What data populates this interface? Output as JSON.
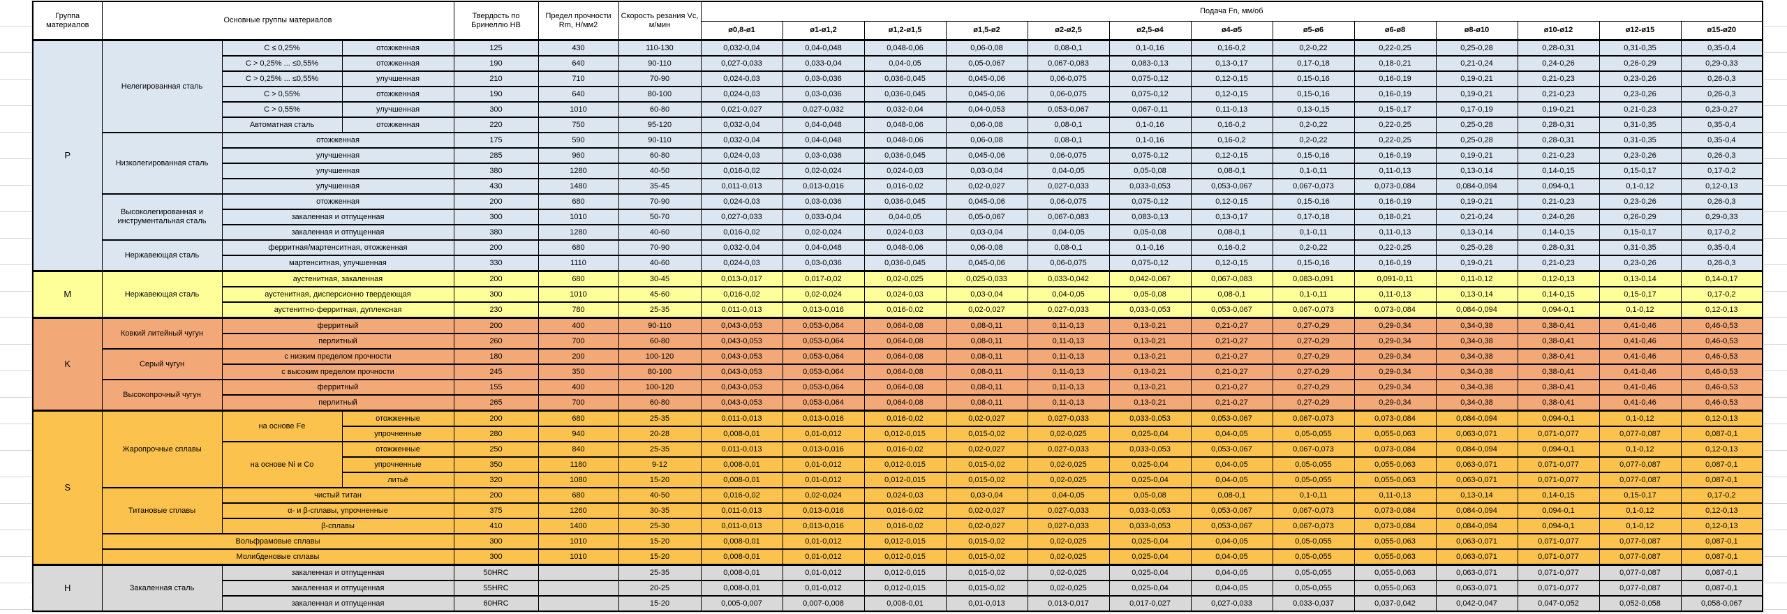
{
  "header": {
    "group": "Группа материалов",
    "main": "Основные группы материалов",
    "hardness": "Твердость по Бринеллю HB",
    "strength": "Предел прочности Rm, Н/мм2",
    "speed": "Скорость резания Vc, м/мин",
    "feed": "Подача Fn, мм/об",
    "diameters": [
      "ø0,8-ø1",
      "ø1-ø1,2",
      "ø1,2-ø1,5",
      "ø1,5-ø2",
      "ø2-ø2,5",
      "ø2,5-ø4",
      "ø4-ø5",
      "ø5-ø6",
      "ø6-ø8",
      "ø8-ø10",
      "ø10-ø12",
      "ø12-ø15",
      "ø15-ø20"
    ]
  },
  "feed_profiles": {
    "A": [
      "0,032-0,04",
      "0,04-0,048",
      "0,048-0,06",
      "0,06-0,08",
      "0,08-0,1",
      "0,1-0,16",
      "0,16-0,2",
      "0,2-0,22",
      "0,22-0,25",
      "0,25-0,28",
      "0,28-0,31",
      "0,31-0,35",
      "0,35-0,4"
    ],
    "B": [
      "0,027-0,033",
      "0,033-0,04",
      "0,04-0,05",
      "0,05-0,067",
      "0,067-0,083",
      "0,083-0,13",
      "0,13-0,17",
      "0,17-0,18",
      "0,18-0,21",
      "0,21-0,24",
      "0,24-0,26",
      "0,26-0,29",
      "0,29-0,33"
    ],
    "C": [
      "0,024-0,03",
      "0,03-0,036",
      "0,036-0,045",
      "0,045-0,06",
      "0,06-0,075",
      "0,075-0,12",
      "0,12-0,15",
      "0,15-0,16",
      "0,16-0,19",
      "0,19-0,21",
      "0,21-0,23",
      "0,23-0,26",
      "0,26-0,3"
    ],
    "D": [
      "0,021-0,027",
      "0,027-0,032",
      "0,032-0,04",
      "0,04-0,053",
      "0,053-0,067",
      "0,067-0,11",
      "0,11-0,13",
      "0,13-0,15",
      "0,15-0,17",
      "0,17-0,19",
      "0,19-0,21",
      "0,21-0,23",
      "0,23-0,27"
    ],
    "E": [
      "0,016-0,02",
      "0,02-0,024",
      "0,024-0,03",
      "0,03-0,04",
      "0,04-0,05",
      "0,05-0,08",
      "0,08-0,1",
      "0,1-0,11",
      "0,11-0,13",
      "0,13-0,14",
      "0,14-0,15",
      "0,15-0,17",
      "0,17-0,2"
    ],
    "F": [
      "0,011-0,013",
      "0,013-0,016",
      "0,016-0,02",
      "0,02-0,027",
      "0,027-0,033",
      "0,033-0,053",
      "0,053-0,067",
      "0,067-0,073",
      "0,073-0,084",
      "0,084-0,094",
      "0,094-0,1",
      "0,1-0,12",
      "0,12-0,13"
    ],
    "G": [
      "0,013-0,017",
      "0,017-0,02",
      "0,02-0,025",
      "0,025-0,033",
      "0,033-0,042",
      "0,042-0,067",
      "0,067-0,083",
      "0,083-0,091",
      "0,091-0,11",
      "0,11-0,12",
      "0,12-0,13",
      "0,13-0,14",
      "0,14-0,17"
    ],
    "H": [
      "0,043-0,053",
      "0,053-0,064",
      "0,064-0,08",
      "0,08-0,11",
      "0,11-0,13",
      "0,13-0,21",
      "0,21-0,27",
      "0,27-0,29",
      "0,29-0,34",
      "0,34-0,38",
      "0,38-0,41",
      "0,41-0,46",
      "0,46-0,53"
    ],
    "I": [
      "0,008-0,01",
      "0,01-0,012",
      "0,012-0,015",
      "0,015-0,02",
      "0,02-0,025",
      "0,025-0,04",
      "0,04-0,05",
      "0,05-0,055",
      "0,055-0,063",
      "0,063-0,071",
      "0,071-0,077",
      "0,077-0,087",
      "0,087-0,1"
    ],
    "J": [
      "0,005-0,007",
      "0,007-0,008",
      "0,008-0,01",
      "0,01-0,013",
      "0,013-0,017",
      "0,017-0,027",
      "0,027-0,033",
      "0,033-0,037",
      "0,037-0,042",
      "0,042-0,047",
      "0,047-0,052",
      "0,052-0,058",
      "0,058-0,067"
    ]
  },
  "groups": [
    {
      "letter": "P",
      "color": "#DCE6F1",
      "rows": [
        {
          "family": "Нелегированная сталь",
          "family_span": 6,
          "sub": "C ≤ 0,25%",
          "state": "отожженная",
          "hb": "125",
          "rm": "430",
          "vc": "110-130",
          "feed": "A"
        },
        {
          "sub": "C > 0,25% ... ≤0,55%",
          "state": "отожженная",
          "hb": "190",
          "rm": "640",
          "vc": "90-110",
          "feed": "B"
        },
        {
          "sub": "C > 0,25% ... ≤0,55%",
          "state": "улучшенная",
          "hb": "210",
          "rm": "710",
          "vc": "70-90",
          "feed": "C"
        },
        {
          "sub": "C > 0,55%",
          "state": "отожженная",
          "hb": "190",
          "rm": "640",
          "vc": "80-100",
          "feed": "C"
        },
        {
          "sub": "C > 0,55%",
          "state": "улучшенная",
          "hb": "300",
          "rm": "1010",
          "vc": "60-80",
          "feed": "D"
        },
        {
          "sub": "Автоматная сталь",
          "state": "отожженная",
          "hb": "220",
          "rm": "750",
          "vc": "95-120",
          "feed": "A"
        },
        {
          "family": "Низколегированная сталь",
          "family_span": 4,
          "merged": "отожженная",
          "hb": "175",
          "rm": "590",
          "vc": "90-110",
          "feed": "A"
        },
        {
          "merged": "улучшенная",
          "hb": "285",
          "rm": "960",
          "vc": "60-80",
          "feed": "C"
        },
        {
          "merged": "улучшенная",
          "hb": "380",
          "rm": "1280",
          "vc": "40-50",
          "feed": "E"
        },
        {
          "merged": "улучшенная",
          "hb": "430",
          "rm": "1480",
          "vc": "35-45",
          "feed": "F"
        },
        {
          "family": "Высоколегированная и инструментальная сталь",
          "family_span": 3,
          "merged": "отожженная",
          "hb": "200",
          "rm": "680",
          "vc": "70-90",
          "feed": "C"
        },
        {
          "merged": "закаленная и отпущенная",
          "hb": "300",
          "rm": "1010",
          "vc": "50-70",
          "feed": "B"
        },
        {
          "merged": "закаленная и отпущенная",
          "hb": "380",
          "rm": "1280",
          "vc": "40-60",
          "feed": "E"
        },
        {
          "family": "Нержавеющая сталь",
          "family_span": 2,
          "merged": "ферритная/мартенситная, отожженная",
          "hb": "200",
          "rm": "680",
          "vc": "70-90",
          "feed": "A"
        },
        {
          "merged": "мартенситная, улучшенная",
          "hb": "330",
          "rm": "1110",
          "vc": "40-60",
          "feed": "C"
        }
      ]
    },
    {
      "letter": "M",
      "color": "#FFFF9A",
      "rows": [
        {
          "family": "Нержавеющая сталь",
          "family_span": 3,
          "merged": "аустенитная, закаленная",
          "hb": "200",
          "rm": "680",
          "vc": "30-45",
          "feed": "G"
        },
        {
          "merged": "аустенитная, дисперсионно твердеющая",
          "hb": "300",
          "rm": "1010",
          "vc": "45-60",
          "feed": "E"
        },
        {
          "merged": "аустенитно-ферритная, дуплексная",
          "hb": "230",
          "rm": "780",
          "vc": "25-35",
          "feed": "F"
        }
      ]
    },
    {
      "letter": "K",
      "color": "#F2A877",
      "rows": [
        {
          "family": "Ковкий литейный чугун",
          "family_span": 2,
          "merged": "ферритный",
          "hb": "200",
          "rm": "400",
          "vc": "90-110",
          "feed": "H"
        },
        {
          "merged": "перлитный",
          "hb": "260",
          "rm": "700",
          "vc": "60-80",
          "feed": "H"
        },
        {
          "family": "Серый чугун",
          "family_span": 2,
          "merged": "с низким пределом прочности",
          "hb": "180",
          "rm": "200",
          "vc": "100-120",
          "feed": "H"
        },
        {
          "merged": "с высоким пределом прочности",
          "hb": "245",
          "rm": "350",
          "vc": "80-100",
          "feed": "H"
        },
        {
          "family": "Высокопрочный чугун",
          "family_span": 2,
          "merged": "ферритный",
          "hb": "155",
          "rm": "400",
          "vc": "100-120",
          "feed": "H"
        },
        {
          "merged": "перлитный",
          "hb": "265",
          "rm": "700",
          "vc": "60-80",
          "feed": "H"
        }
      ]
    },
    {
      "letter": "S",
      "color": "#FBC34D",
      "rows": [
        {
          "family": "Жаропрочные сплавы",
          "family_span": 5,
          "sub": "на основе Fe",
          "sub_span": 2,
          "state": "отожженные",
          "hb": "200",
          "rm": "680",
          "vc": "25-35",
          "feed": "F"
        },
        {
          "state": "упрочненные",
          "hb": "280",
          "rm": "940",
          "vc": "20-28",
          "feed": "I"
        },
        {
          "sub": "на основе Ni и Co",
          "sub_span": 3,
          "state": "отожженные",
          "hb": "250",
          "rm": "840",
          "vc": "25-35",
          "feed": "F"
        },
        {
          "state": "упрочненные",
          "hb": "350",
          "rm": "1180",
          "vc": "9-12",
          "feed": "I"
        },
        {
          "state": "литьё",
          "hb": "320",
          "rm": "1080",
          "vc": "15-20",
          "feed": "I"
        },
        {
          "family": "Титановые сплавы",
          "family_span": 3,
          "merged": "чистый титан",
          "hb": "200",
          "rm": "680",
          "vc": "40-50",
          "feed": "E"
        },
        {
          "merged": "α- и β-сплавы, упрочненные",
          "hb": "375",
          "rm": "1260",
          "vc": "30-35",
          "feed": "F"
        },
        {
          "merged": "β-сплавы",
          "hb": "410",
          "rm": "1400",
          "vc": "25-30",
          "feed": "F"
        },
        {
          "full": "Вольфрамовые сплавы",
          "hb": "300",
          "rm": "1010",
          "vc": "15-20",
          "feed": "I"
        },
        {
          "full": "Молибденовые сплавы",
          "hb": "300",
          "rm": "1010",
          "vc": "15-20",
          "feed": "I"
        }
      ]
    },
    {
      "letter": "H",
      "color": "#D9D9D9",
      "rows": [
        {
          "family": "Закаленная сталь",
          "family_span": 3,
          "merged": "закаленная и отпущенная",
          "hb": "50HRC",
          "rm": "",
          "vc": "25-35",
          "feed": "I"
        },
        {
          "merged": "закаленная и отпущенная",
          "hb": "55HRC",
          "rm": "",
          "vc": "20-25",
          "feed": "I"
        },
        {
          "merged": "закаленная и отпущенная",
          "hb": "60HRC",
          "rm": "",
          "vc": "15-20",
          "feed": "J"
        }
      ]
    }
  ]
}
